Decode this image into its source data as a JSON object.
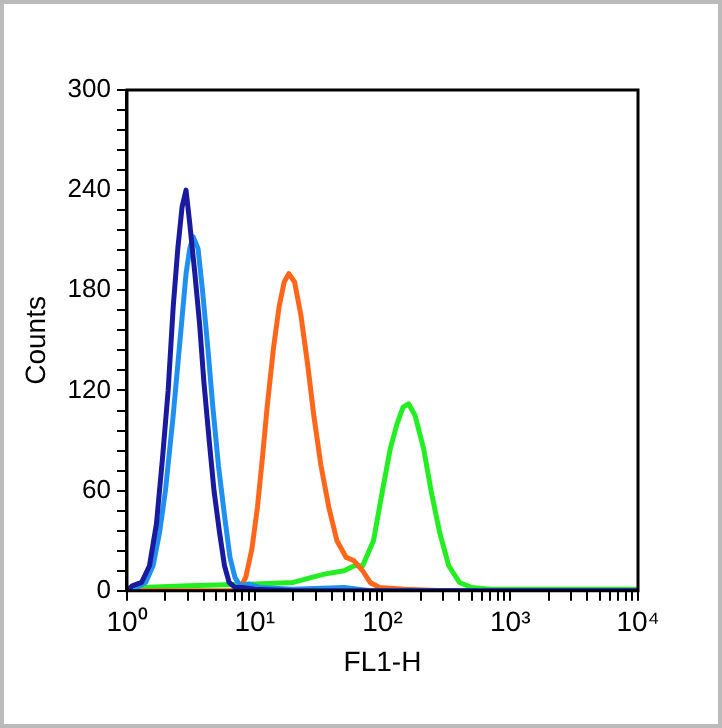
{
  "chart_data": {
    "type": "line",
    "xlabel": "FL1-H",
    "ylabel": "Counts",
    "log": "x",
    "grid": false,
    "legend": false,
    "marker": "none",
    "line_style": "solid",
    "xlim": [
      1,
      10000
    ],
    "ylim": [
      0,
      300
    ],
    "xticks": [
      {
        "value": 1,
        "label": "10⁰"
      },
      {
        "value": 2,
        "label": null
      },
      {
        "value": 3,
        "label": null
      },
      {
        "value": 4,
        "label": null
      },
      {
        "value": 5,
        "label": null
      },
      {
        "value": 6,
        "label": null
      },
      {
        "value": 7,
        "label": null
      },
      {
        "value": 8,
        "label": null
      },
      {
        "value": 9,
        "label": null
      },
      {
        "value": 10,
        "label": "10¹"
      },
      {
        "value": 20,
        "label": null
      },
      {
        "value": 30,
        "label": null
      },
      {
        "value": 40,
        "label": null
      },
      {
        "value": 50,
        "label": null
      },
      {
        "value": 60,
        "label": null
      },
      {
        "value": 70,
        "label": null
      },
      {
        "value": 80,
        "label": null
      },
      {
        "value": 90,
        "label": null
      },
      {
        "value": 100,
        "label": "10²"
      },
      {
        "value": 200,
        "label": null
      },
      {
        "value": 300,
        "label": null
      },
      {
        "value": 400,
        "label": null
      },
      {
        "value": 500,
        "label": null
      },
      {
        "value": 600,
        "label": null
      },
      {
        "value": 700,
        "label": null
      },
      {
        "value": 800,
        "label": null
      },
      {
        "value": 900,
        "label": null
      },
      {
        "value": 1000,
        "label": "10³"
      },
      {
        "value": 2000,
        "label": null
      },
      {
        "value": 3000,
        "label": null
      },
      {
        "value": 4000,
        "label": null
      },
      {
        "value": 5000,
        "label": null
      },
      {
        "value": 6000,
        "label": null
      },
      {
        "value": 7000,
        "label": null
      },
      {
        "value": 8000,
        "label": null
      },
      {
        "value": 9000,
        "label": null
      },
      {
        "value": 10000,
        "label": "10⁴"
      }
    ],
    "yticks": [
      0,
      {
        "value": 12,
        "label": null
      },
      {
        "value": 24,
        "label": null
      },
      {
        "value": 36,
        "label": null
      },
      {
        "value": 48,
        "label": null
      },
      60,
      {
        "value": 72,
        "label": null
      },
      {
        "value": 84,
        "label": null
      },
      {
        "value": 96,
        "label": null
      },
      {
        "value": 108,
        "label": null
      },
      120,
      {
        "value": 132,
        "label": null
      },
      {
        "value": 144,
        "label": null
      },
      {
        "value": 156,
        "label": null
      },
      {
        "value": 168,
        "label": null
      },
      180,
      {
        "value": 192,
        "label": null
      },
      {
        "value": 204,
        "label": null
      },
      {
        "value": 216,
        "label": null
      },
      {
        "value": 228,
        "label": null
      },
      240,
      {
        "value": 252,
        "label": null
      },
      {
        "value": 264,
        "label": null
      },
      {
        "value": 276,
        "label": null
      },
      {
        "value": 288,
        "label": null
      },
      300
    ],
    "series": [
      {
        "color": "#1a1aa0",
        "x": [
          1,
          1.1,
          1.3,
          1.5,
          1.7,
          1.9,
          2.1,
          2.3,
          2.5,
          2.7,
          2.9,
          3.1,
          3.4,
          3.7,
          4,
          4.4,
          4.8,
          5.3,
          5.8,
          6.3,
          7,
          8,
          10,
          20,
          10000
        ],
        "values": [
          0,
          3,
          5,
          15,
          40,
          80,
          120,
          170,
          205,
          230,
          240,
          220,
          190,
          160,
          125,
          90,
          60,
          35,
          15,
          5,
          2,
          2,
          1,
          0,
          0
        ]
      },
      {
        "color": "#2090f0",
        "x": [
          1,
          1.2,
          1.4,
          1.6,
          1.8,
          2,
          2.3,
          2.6,
          2.9,
          3.1,
          3.3,
          3.6,
          3.9,
          4.3,
          4.7,
          5.2,
          5.8,
          6.4,
          7,
          7.7,
          9,
          11,
          20,
          50,
          80,
          10000
        ],
        "values": [
          0,
          2,
          5,
          15,
          35,
          60,
          105,
          150,
          190,
          205,
          212,
          205,
          180,
          145,
          110,
          75,
          45,
          20,
          8,
          3,
          4,
          2,
          1,
          2,
          0,
          0
        ]
      },
      {
        "color": "#ff6619",
        "x": [
          1,
          7,
          7.7,
          8.5,
          9.5,
          10.5,
          11.5,
          12.5,
          14,
          15.5,
          17,
          18.5,
          20.5,
          23,
          26,
          29,
          33,
          38,
          44,
          52,
          60,
          70,
          80,
          95,
          150,
          300,
          10000
        ],
        "values": [
          0,
          0,
          2,
          8,
          25,
          50,
          80,
          110,
          145,
          170,
          185,
          190,
          185,
          165,
          135,
          105,
          75,
          50,
          30,
          20,
          18,
          12,
          5,
          2,
          1,
          0,
          0
        ]
      },
      {
        "color": "#22ee22",
        "x": [
          1,
          1.3,
          3,
          10,
          20,
          35,
          50,
          60,
          70,
          85,
          100,
          115,
          130,
          145,
          160,
          180,
          210,
          240,
          280,
          330,
          400,
          500,
          700,
          10000
        ],
        "values": [
          0,
          2,
          3,
          4,
          5,
          10,
          12,
          15,
          15,
          30,
          60,
          85,
          100,
          110,
          112,
          105,
          85,
          60,
          35,
          15,
          5,
          2,
          1,
          1
        ]
      }
    ]
  }
}
